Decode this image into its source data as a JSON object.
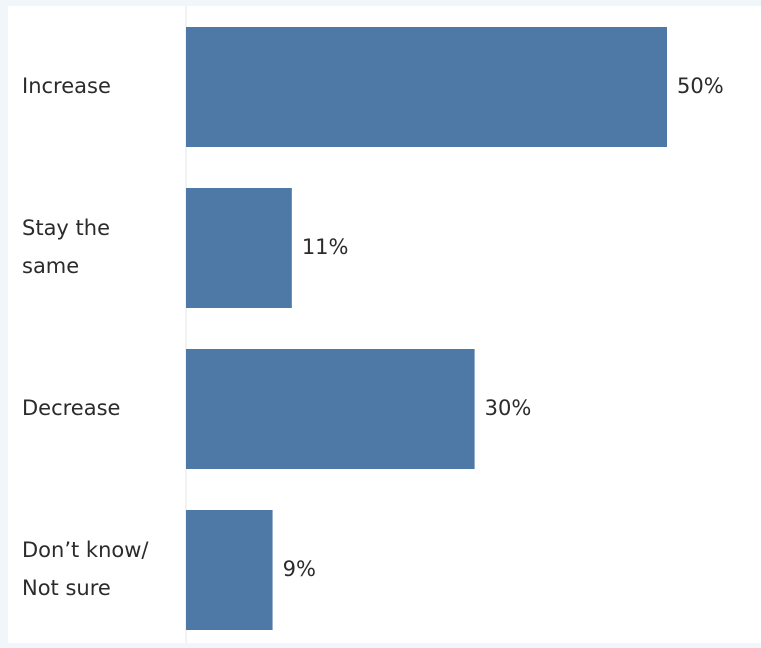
{
  "chart_data": {
    "type": "bar",
    "orientation": "horizontal",
    "categories": [
      "Increase",
      "Stay the same",
      "Decrease",
      "Don’t know/ Not sure"
    ],
    "category_lines": [
      [
        "Increase"
      ],
      [
        "Stay the",
        "same"
      ],
      [
        "Decrease"
      ],
      [
        "Don’t know/",
        "Not sure"
      ]
    ],
    "values": [
      50,
      11,
      30,
      9
    ],
    "value_labels": [
      "50%",
      "11%",
      "30%",
      "9%"
    ],
    "xlim": [
      0,
      50
    ],
    "grid": false,
    "legend": "none",
    "bar_color": "#4e79a7",
    "background_color": "#ffffff",
    "page_background": "#f1f6fa",
    "axis_line_color": "#e6e6e6"
  }
}
